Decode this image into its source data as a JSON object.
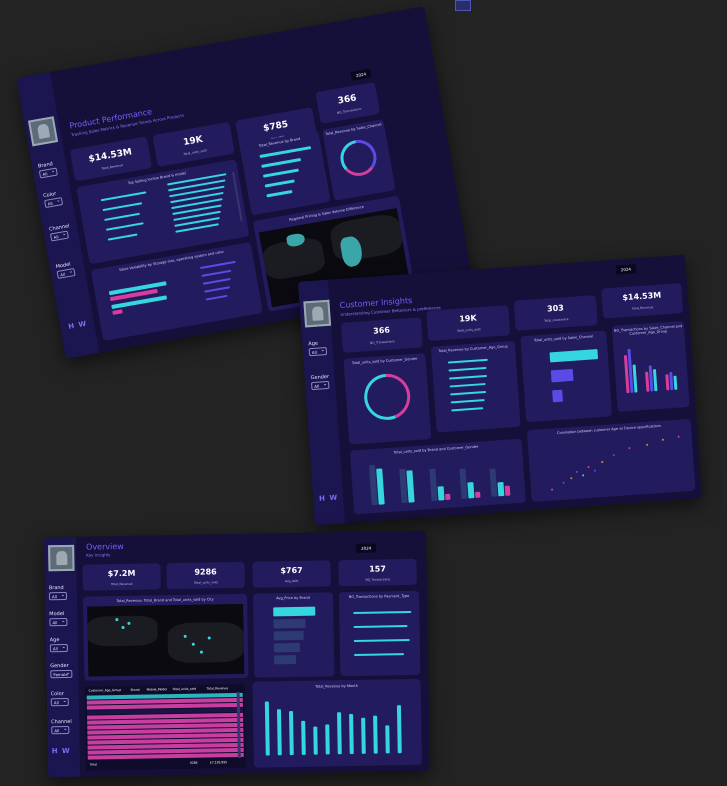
{
  "dashboards": {
    "product": {
      "title": "Product Performance",
      "subtitle": "Tracking Sales Metrics & Revenue Trends Across Products",
      "year": "2024",
      "filters": [
        {
          "label": "Brand",
          "value": "All"
        },
        {
          "label": "Color",
          "value": "All"
        },
        {
          "label": "Channel",
          "value": "All"
        },
        {
          "label": "Model",
          "value": "All"
        }
      ],
      "brand_mark": "H W",
      "kpis": [
        {
          "value": "$14.53M",
          "label": "Total_Revenue"
        },
        {
          "value": "19K",
          "label": "Total_units_sold"
        },
        {
          "value": "$785",
          "label": "Avg_AOV"
        },
        {
          "value": "366",
          "label": "NO_Transactions"
        }
      ],
      "panels": {
        "top_selling": "Top Selling Incline Brand & model",
        "revenue_by_brand": "Total_Revenue by Brand",
        "sales_channel": "Total_Revenue by Sales_Channel",
        "storage": "Sales Variability by Storage size, operating system and color",
        "map": "Regional Pricing & Sales Volume Difference"
      }
    },
    "customer": {
      "title": "Customer Insights",
      "subtitle": "Understanding Customer Behaviors & preferences",
      "year": "2024",
      "filters": [
        {
          "label": "Age",
          "value": "All"
        },
        {
          "label": "Gender",
          "value": "All"
        }
      ],
      "brand_mark": "H W",
      "kpis": [
        {
          "value": "366",
          "label": "NO_Transactions"
        },
        {
          "value": "19K",
          "label": "Total_units_sold"
        },
        {
          "value": "303",
          "label": "Total_customers"
        },
        {
          "value": "$14.53M",
          "label": "Total_Revenue"
        }
      ],
      "panels": {
        "donut": "Total_units_sold by Customer_Gender",
        "age_group": "Total_Revenue by Customer_Age_Group",
        "channel": "Total_units_sold by Sales_Channel",
        "transactions": "NO_Transactions by Sales_Channel and Customer_Age_Group",
        "brand_gender": "Total_units_sold by Brand and Customer_Gender",
        "scatter": "Correlation between customer Age vs Device specifications"
      }
    },
    "overview": {
      "title": "Overview",
      "subtitle": "Key Insights",
      "year": "2024",
      "filters": [
        {
          "label": "Brand",
          "value": "All"
        },
        {
          "label": "Model",
          "value": "All"
        },
        {
          "label": "Age",
          "value": "All"
        },
        {
          "label": "Gender",
          "value": "Female"
        },
        {
          "label": "Color",
          "value": "All"
        },
        {
          "label": "Channel",
          "value": "All"
        }
      ],
      "brand_mark": "H W",
      "kpis": [
        {
          "value": "$7.2M",
          "label": "Total_Revenue"
        },
        {
          "value": "9286",
          "label": "Total_units_sold"
        },
        {
          "value": "$767",
          "label": "Avg_AOV"
        },
        {
          "value": "157",
          "label": "NO_Transactions"
        }
      ],
      "panels": {
        "map": "Total_Revenue, Total_Brand and Total_units_sold by City",
        "brand": "Avg_Price by Brand",
        "payment": "NO_Transactions by Payment_Type",
        "month": "Total_Revenue by Month"
      },
      "table": {
        "headers": [
          "Customer_Age_Group",
          "Brand",
          "Mobile_Model",
          "Total_units_sold",
          "Total_Revenue"
        ],
        "total_label": "Total",
        "total_units": "9286",
        "total_revenue": "$7,195,895"
      }
    }
  },
  "colors": {
    "background": "#232323",
    "panel": "#15103a",
    "card": "#221c5e",
    "accent_cyan": "#36d6e0",
    "accent_pink": "#d63d9c",
    "accent_violet": "#5a4be6"
  }
}
